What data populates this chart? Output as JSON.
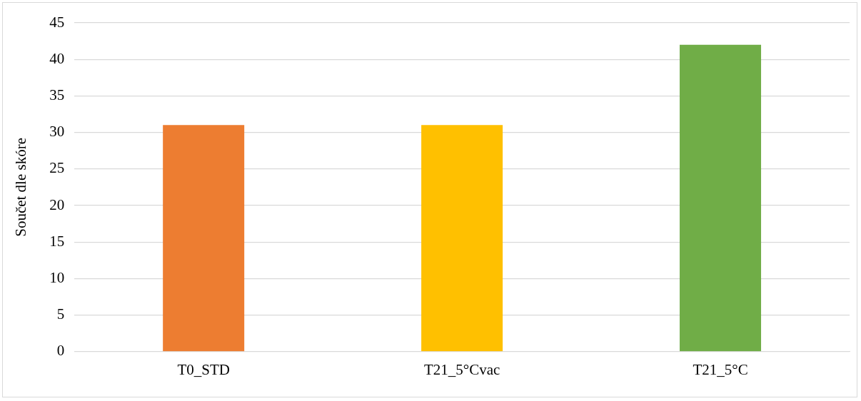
{
  "chart_data": {
    "type": "bar",
    "ylabel": "Součet dle skóre",
    "categories": [
      "T0_STD",
      "T21_5°Cvac",
      "T21_5°C"
    ],
    "values": [
      31,
      31,
      42
    ],
    "colors": [
      "#ed7d31",
      "#ffc000",
      "#70ad47"
    ],
    "ylim": [
      0,
      45
    ],
    "yticks": [
      0,
      5,
      10,
      15,
      20,
      25,
      30,
      35,
      40,
      45
    ],
    "grid": "y",
    "legend": false
  }
}
